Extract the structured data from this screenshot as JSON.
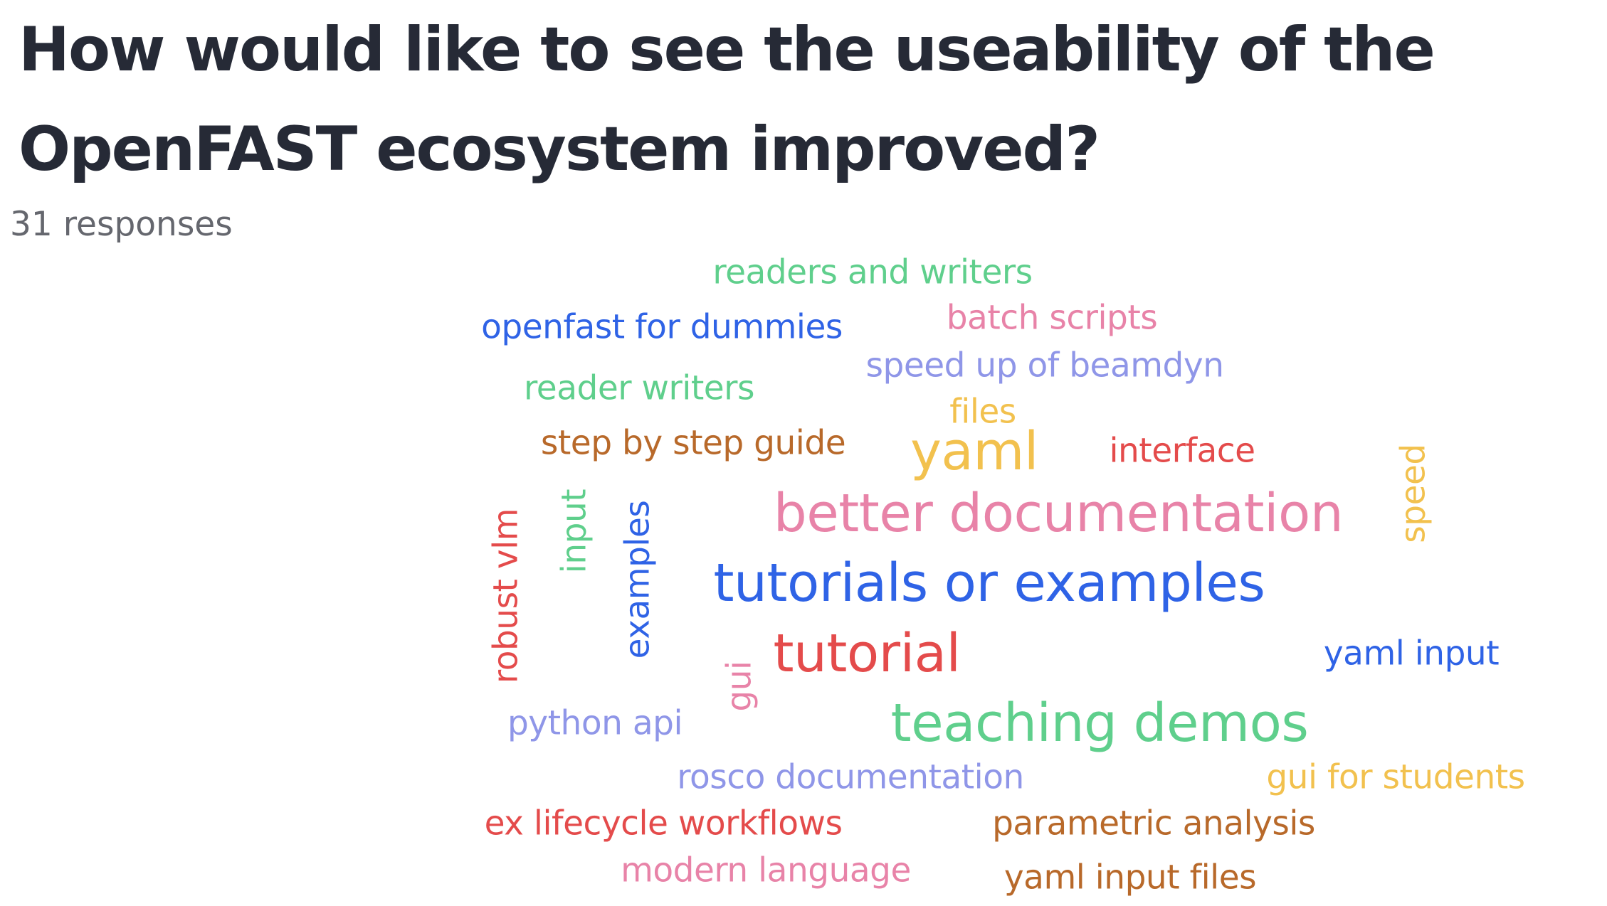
{
  "question": {
    "title": "How would like to see the useability of the OpenFAST ecosystem improved?",
    "responses_label": "31 responses"
  },
  "palette": {
    "green": "#5fcf8c",
    "blue": "#2f63e6",
    "pink": "#e883a8",
    "lavender": "#8f96e8",
    "yellow": "#f2c14e",
    "brown": "#b8692a",
    "red": "#e44b4b"
  },
  "word_cloud": {
    "words": [
      {
        "text": "readers and writers",
        "color": "#5fcf8c",
        "orientation": "horizontal"
      },
      {
        "text": "openfast for dummies",
        "color": "#2f63e6",
        "orientation": "horizontal"
      },
      {
        "text": "batch scripts",
        "color": "#e883a8",
        "orientation": "horizontal"
      },
      {
        "text": "speed up of beamdyn",
        "color": "#8f96e8",
        "orientation": "horizontal"
      },
      {
        "text": "reader writers",
        "color": "#5fcf8c",
        "orientation": "horizontal"
      },
      {
        "text": "files",
        "color": "#f2c14e",
        "orientation": "horizontal"
      },
      {
        "text": "step by step guide",
        "color": "#b8692a",
        "orientation": "horizontal"
      },
      {
        "text": "yaml",
        "color": "#f2c14e",
        "orientation": "horizontal"
      },
      {
        "text": "interface",
        "color": "#e44b4b",
        "orientation": "horizontal"
      },
      {
        "text": "speed",
        "color": "#f2c14e",
        "orientation": "vertical"
      },
      {
        "text": "better documentation",
        "color": "#e883a8",
        "orientation": "horizontal"
      },
      {
        "text": "input",
        "color": "#5fcf8c",
        "orientation": "vertical"
      },
      {
        "text": "examples",
        "color": "#2f63e6",
        "orientation": "vertical"
      },
      {
        "text": "robust vlm",
        "color": "#e44b4b",
        "orientation": "vertical"
      },
      {
        "text": "tutorials or examples",
        "color": "#2f63e6",
        "orientation": "horizontal"
      },
      {
        "text": "tutorial",
        "color": "#e44b4b",
        "orientation": "horizontal"
      },
      {
        "text": "gui",
        "color": "#e883a8",
        "orientation": "vertical"
      },
      {
        "text": "yaml input",
        "color": "#2f63e6",
        "orientation": "horizontal"
      },
      {
        "text": "python api",
        "color": "#8f96e8",
        "orientation": "horizontal"
      },
      {
        "text": "teaching demos",
        "color": "#5fcf8c",
        "orientation": "horizontal"
      },
      {
        "text": "rosco documentation",
        "color": "#8f96e8",
        "orientation": "horizontal"
      },
      {
        "text": "gui for students",
        "color": "#f2c14e",
        "orientation": "horizontal"
      },
      {
        "text": "ex lifecycle workflows",
        "color": "#e44b4b",
        "orientation": "horizontal"
      },
      {
        "text": "parametric analysis",
        "color": "#b8692a",
        "orientation": "horizontal"
      },
      {
        "text": "modern language",
        "color": "#e883a8",
        "orientation": "horizontal"
      },
      {
        "text": "yaml input files",
        "color": "#b8692a",
        "orientation": "horizontal"
      }
    ]
  }
}
